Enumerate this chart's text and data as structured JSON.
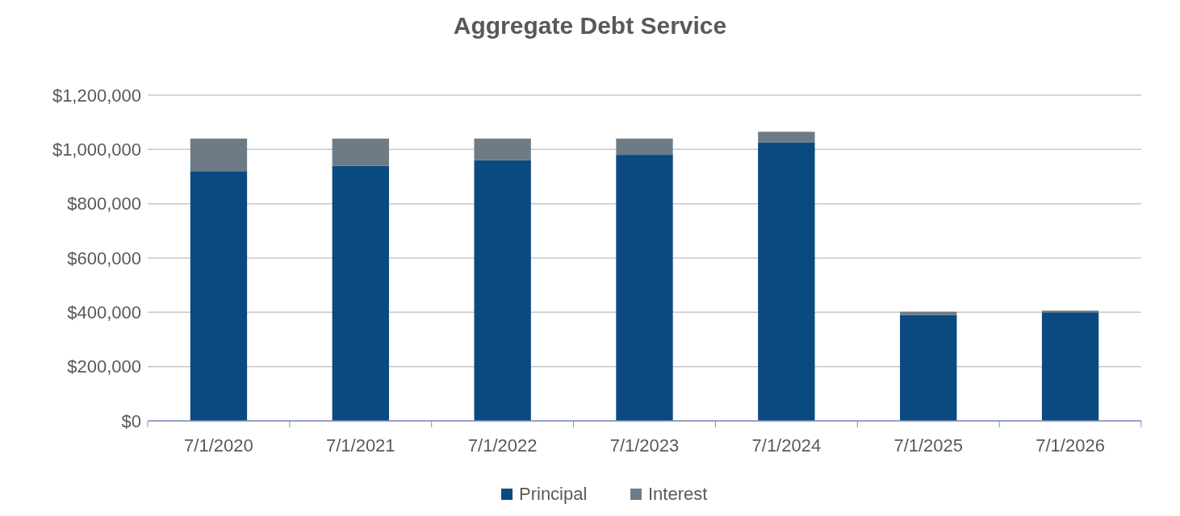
{
  "chart_data": {
    "type": "bar",
    "title": "Aggregate Debt Service",
    "categories": [
      "7/1/2020",
      "7/1/2021",
      "7/1/2022",
      "7/1/2023",
      "7/1/2024",
      "7/1/2025",
      "7/1/2026"
    ],
    "stacked": true,
    "series": [
      {
        "name": "Principal",
        "color": "#0b4a80",
        "values": [
          920000,
          940000,
          960000,
          980000,
          1025000,
          390000,
          400000
        ]
      },
      {
        "name": "Interest",
        "color": "#6d7b86",
        "values": [
          120000,
          100000,
          80000,
          60000,
          40000,
          12000,
          6000
        ]
      }
    ],
    "ylim": [
      0,
      1200000
    ],
    "yticks": [
      {
        "value": 0,
        "label": "$0"
      },
      {
        "value": 200000,
        "label": "$200,000"
      },
      {
        "value": 400000,
        "label": "$400,000"
      },
      {
        "value": 600000,
        "label": "$600,000"
      },
      {
        "value": 800000,
        "label": "$800,000"
      },
      {
        "value": 1000000,
        "label": "$1,000,000"
      },
      {
        "value": 1200000,
        "label": "$1,200,000"
      }
    ],
    "grid": "y",
    "legend": "bottom"
  }
}
